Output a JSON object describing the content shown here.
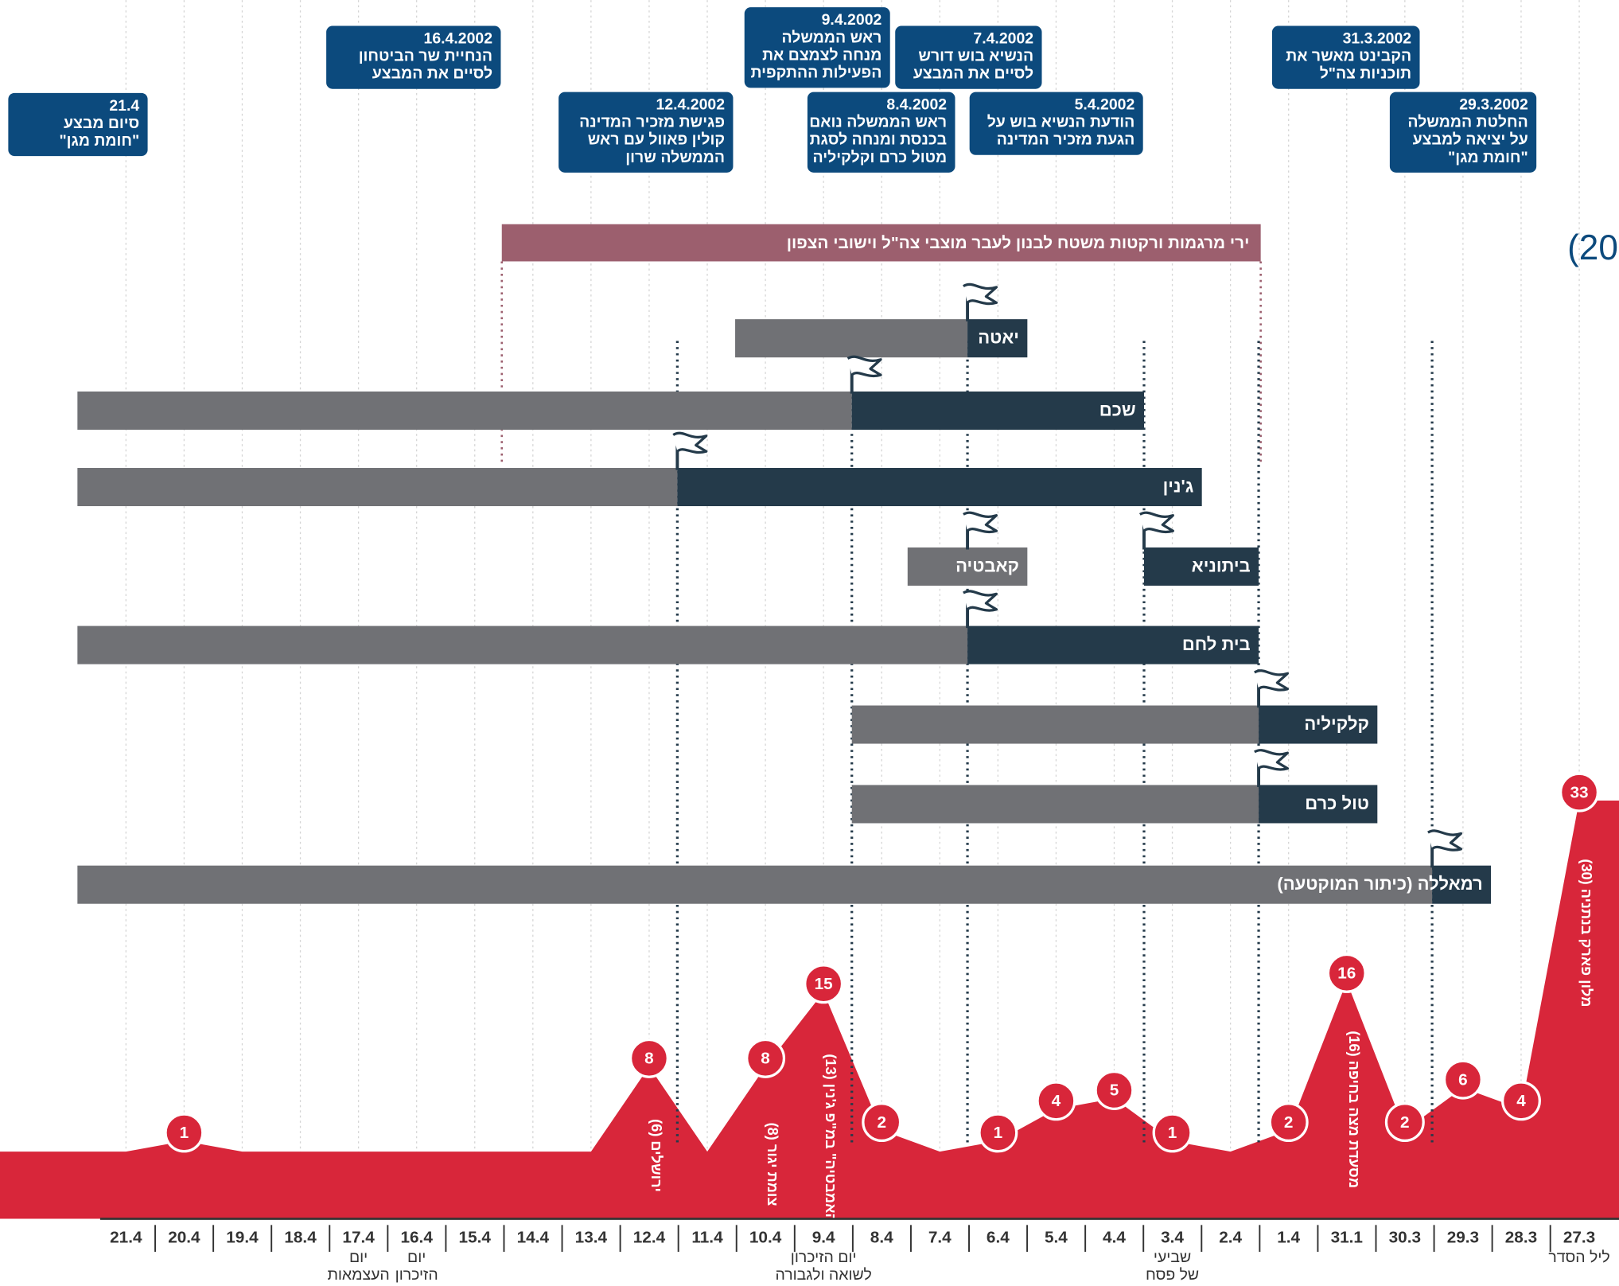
{
  "partial_title": "(20",
  "annotations": [
    {
      "lines": [
        "21.4",
        "סיום מבצע",
        "\"חומת מגן\""
      ]
    },
    {
      "lines": [
        "16.4.2002",
        "הנחיית שר הביטחון",
        "לסיים את המבצע"
      ]
    },
    {
      "lines": [
        "12.4.2002",
        "פגישת מזכיר המדינה",
        "קולין פאוול עם ראש",
        "הממשלה שרון"
      ]
    },
    {
      "lines": [
        "9.4.2002",
        "ראש הממשלה",
        "מנחה לצמצם את",
        "הפעילות ההתקפית"
      ]
    },
    {
      "lines": [
        "8.4.2002",
        "ראש הממשלה נואם",
        "בכנסת ומנחה לסגת",
        "מטול כרם וקלקיליה"
      ]
    },
    {
      "lines": [
        "7.4.2002",
        "הנשיא בוש דורש",
        "לסיים את המבצע"
      ]
    },
    {
      "lines": [
        "5.4.2002",
        "הודעת הנשיא בוש על",
        "הגעת מזכיר המדינה"
      ]
    },
    {
      "lines": [
        "31.3.2002",
        "הקבינט מאשר את",
        "תוכניות צה\"ל"
      ]
    },
    {
      "lines": [
        "29.3.2002",
        "החלטת הממשלה",
        "על יציאה למבצע",
        "\"חומת מגן\""
      ]
    }
  ],
  "gantt": {
    "top_band": "ירי מרגמות ורקטות משטח לבנון לעבר מוצבי צה\"ל וישובי הצפון",
    "rows": [
      "יאטה",
      "שכם",
      "ג'נין",
      "קאבטיה",
      "ביתוניא",
      "בית לחם",
      "קלקיליה",
      "טול כרם",
      "רמאללה (כיתור המוקטעה)"
    ]
  },
  "chart_data": {
    "type": "area",
    "color": "#d8263a",
    "categories": [
      "21.4",
      "20.4",
      "19.4",
      "18.4",
      "17.4",
      "16.4",
      "15.4",
      "14.4",
      "13.4",
      "12.4",
      "11.4",
      "10.4",
      "9.4",
      "8.4",
      "7.4",
      "6.4",
      "5.4",
      "4.4",
      "3.4",
      "2.4",
      "1.4",
      "31.1",
      "30.3",
      "29.3",
      "28.3",
      "27.3"
    ],
    "values": [
      0,
      1,
      0,
      0,
      0,
      0,
      0,
      0,
      0,
      8,
      0,
      8,
      15,
      2,
      0,
      1,
      4,
      5,
      1,
      0,
      2,
      16,
      2,
      6,
      4,
      33
    ],
    "holidays": [
      {
        "date": "17.4",
        "lines": [
          "יום",
          "העצמאות"
        ]
      },
      {
        "date": "16.4",
        "lines": [
          "יום",
          "הזיכרון"
        ]
      },
      {
        "date": "9.4",
        "lines": [
          "יום הזיכרון",
          "לשואה ולגבורה"
        ]
      },
      {
        "date": "3.4",
        "lines": [
          "שביעי",
          "של פסח"
        ]
      },
      {
        "date": "27.3",
        "lines": [
          "ליל הסדר"
        ]
      }
    ],
    "incidents": [
      {
        "date": "12.4",
        "label": "ירושלים (6)"
      },
      {
        "date": "10.4",
        "label": "צומת יגור (8)"
      },
      {
        "date": "9.4",
        "label": "\"האמבטיה\" במ\"פ ג'נין (13)"
      },
      {
        "date": "31.1",
        "label": "מסעדת מצה בחיפה (16)"
      },
      {
        "date": "27.3",
        "label": "מלון פארק בנתניה (30)"
      }
    ]
  }
}
